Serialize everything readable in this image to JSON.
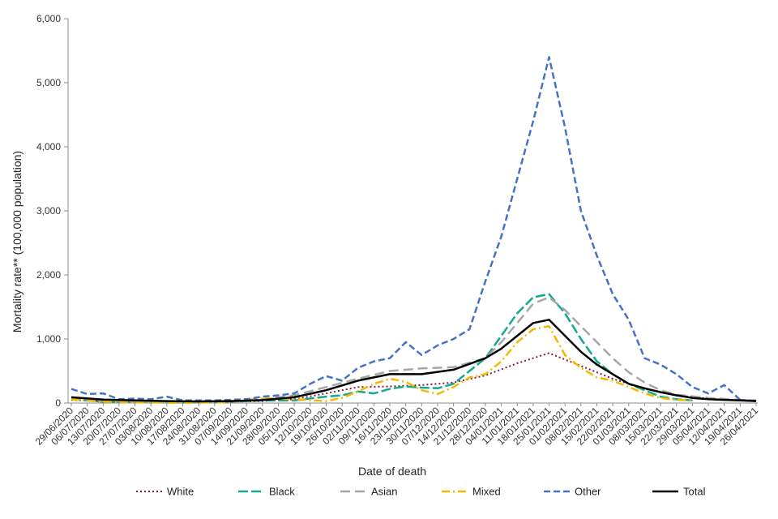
{
  "chart_data": {
    "type": "line",
    "title": "",
    "xlabel": "Date of death",
    "ylabel": "Mortality rate** (100,000 population)",
    "ylim": [
      0,
      6000
    ],
    "yticks": [
      0,
      1000,
      2000,
      3000,
      4000,
      5000,
      6000
    ],
    "ytick_labels": [
      "0",
      "1,000",
      "2,000",
      "3,000",
      "4,000",
      "5,000",
      "6,000"
    ],
    "grid": false,
    "legend_position": "bottom",
    "x_tick_labels": [
      "29/06/2020",
      "06/07/2020",
      "13/07/2020",
      "20/07/2020",
      "27/07/2020",
      "03/08/2020",
      "10/08/2020",
      "17/08/2020",
      "24/08/2020",
      "31/08/2020",
      "07/09/2020",
      "14/09/2020",
      "21/09/2020",
      "28/09/2020",
      "05/10/2020",
      "12/10/2020",
      "19/10/2020",
      "26/10/2020",
      "02/11/2020",
      "09/11/2020",
      "16/11/2020",
      "23/11/2020",
      "30/11/2020",
      "07/12/2020",
      "14/12/2020",
      "21/12/2020",
      "28/12/2020",
      "04/01/2021",
      "11/01/2021",
      "18/01/2021",
      "25/01/2021",
      "01/02/2021",
      "08/02/2021",
      "15/02/2021",
      "22/02/2021",
      "01/03/2021",
      "08/03/2021",
      "15/03/2021",
      "22/03/2021",
      "29/03/2021",
      "05/04/2021",
      "12/04/2021",
      "19/04/2021",
      "26/04/2021"
    ],
    "series": [
      {
        "name": "White",
        "color": "#8b1a3a",
        "dash": "2,3",
        "width": 2,
        "x": [
          "29/06/2020",
          "13/07/2020",
          "27/07/2020",
          "10/08/2020",
          "24/08/2020",
          "07/09/2020",
          "21/09/2020",
          "05/10/2020",
          "19/10/2020",
          "02/11/2020",
          "16/11/2020",
          "30/11/2020",
          "14/12/2020",
          "28/12/2020",
          "11/01/2021",
          "25/01/2021",
          "08/02/2021",
          "22/02/2021",
          "08/03/2021",
          "22/03/2021",
          "05/04/2021",
          "19/04/2021",
          "26/04/2021"
        ],
        "y": [
          50,
          25,
          20,
          15,
          15,
          20,
          30,
          60,
          150,
          250,
          260,
          280,
          320,
          430,
          620,
          780,
          580,
          380,
          220,
          120,
          70,
          40,
          30
        ]
      },
      {
        "name": "Black",
        "color": "#14a88f",
        "dash": "12,4",
        "width": 2.5,
        "x": [
          "29/06/2020",
          "13/07/2020",
          "27/07/2020",
          "10/08/2020",
          "24/08/2020",
          "07/09/2020",
          "21/09/2020",
          "05/10/2020",
          "19/10/2020",
          "26/10/2020",
          "02/11/2020",
          "09/11/2020",
          "16/11/2020",
          "23/11/2020",
          "30/11/2020",
          "07/12/2020",
          "14/12/2020",
          "21/12/2020",
          "28/12/2020",
          "04/01/2021",
          "11/01/2021",
          "18/01/2021",
          "25/01/2021",
          "01/02/2021",
          "08/02/2021",
          "15/02/2021",
          "22/02/2021",
          "01/03/2021",
          "08/03/2021",
          "15/03/2021",
          "22/03/2021",
          "29/03/2021"
        ],
        "y": [
          60,
          20,
          15,
          10,
          10,
          20,
          40,
          40,
          100,
          120,
          180,
          150,
          220,
          260,
          240,
          230,
          300,
          500,
          700,
          1050,
          1400,
          1650,
          1700,
          1400,
          1000,
          650,
          450,
          300,
          200,
          100,
          60,
          40
        ]
      },
      {
        "name": "Asian",
        "color": "#a6a6a6",
        "dash": "12,6",
        "width": 2.5,
        "x": [
          "29/06/2020",
          "13/07/2020",
          "27/07/2020",
          "10/08/2020",
          "24/08/2020",
          "07/09/2020",
          "21/09/2020",
          "05/10/2020",
          "19/10/2020",
          "02/11/2020",
          "16/11/2020",
          "30/11/2020",
          "14/12/2020",
          "28/12/2020",
          "04/01/2021",
          "11/01/2021",
          "18/01/2021",
          "25/01/2021",
          "01/02/2021",
          "08/02/2021",
          "15/02/2021",
          "22/02/2021",
          "01/03/2021",
          "08/03/2021",
          "15/03/2021",
          "22/03/2021",
          "05/04/2021",
          "19/04/2021",
          "26/04/2021"
        ],
        "y": [
          70,
          30,
          20,
          15,
          15,
          25,
          60,
          120,
          250,
          380,
          500,
          540,
          560,
          700,
          950,
          1250,
          1550,
          1650,
          1450,
          1200,
          950,
          700,
          480,
          320,
          200,
          130,
          80,
          50,
          40
        ]
      },
      {
        "name": "Mixed",
        "color": "#f5b800",
        "dash": "10,4,2,4",
        "width": 2.5,
        "x": [
          "29/06/2020",
          "13/07/2020",
          "27/07/2020",
          "10/08/2020",
          "24/08/2020",
          "07/09/2020",
          "21/09/2020",
          "05/10/2020",
          "19/10/2020",
          "26/10/2020",
          "02/11/2020",
          "09/11/2020",
          "16/11/2020",
          "23/11/2020",
          "30/11/2020",
          "07/12/2020",
          "14/12/2020",
          "21/12/2020",
          "28/12/2020",
          "04/01/2021",
          "11/01/2021",
          "18/01/2021",
          "25/01/2021",
          "01/02/2021",
          "08/02/2021",
          "15/02/2021",
          "22/02/2021",
          "01/03/2021",
          "08/03/2021",
          "15/03/2021",
          "22/03/2021",
          "29/03/2021"
        ],
        "y": [
          60,
          20,
          10,
          5,
          5,
          15,
          80,
          60,
          30,
          80,
          180,
          300,
          380,
          330,
          200,
          140,
          250,
          400,
          450,
          650,
          950,
          1150,
          1200,
          750,
          550,
          400,
          350,
          250,
          150,
          80,
          50,
          40
        ]
      },
      {
        "name": "Other",
        "color": "#4472c4",
        "dash": "8,4",
        "width": 2.5,
        "x": [
          "29/06/2020",
          "06/07/2020",
          "13/07/2020",
          "20/07/2020",
          "27/07/2020",
          "03/08/2020",
          "10/08/2020",
          "17/08/2020",
          "24/08/2020",
          "31/08/2020",
          "07/09/2020",
          "14/09/2020",
          "21/09/2020",
          "28/09/2020",
          "05/10/2020",
          "12/10/2020",
          "19/10/2020",
          "26/10/2020",
          "02/11/2020",
          "09/11/2020",
          "16/11/2020",
          "23/11/2020",
          "30/11/2020",
          "07/12/2020",
          "14/12/2020",
          "21/12/2020",
          "28/12/2020",
          "04/01/2021",
          "11/01/2021",
          "18/01/2021",
          "25/01/2021",
          "01/02/2021",
          "08/02/2021",
          "15/02/2021",
          "22/02/2021",
          "01/03/2021",
          "08/03/2021",
          "15/03/2021",
          "22/03/2021",
          "29/03/2021",
          "05/04/2021",
          "12/04/2021",
          "19/04/2021",
          "26/04/2021"
        ],
        "y": [
          220,
          140,
          150,
          60,
          70,
          60,
          100,
          40,
          40,
          40,
          50,
          60,
          100,
          120,
          150,
          300,
          420,
          350,
          550,
          650,
          700,
          950,
          750,
          900,
          1000,
          1150,
          1900,
          2600,
          3500,
          4400,
          5400,
          4300,
          3000,
          2300,
          1700,
          1300,
          700,
          600,
          450,
          250,
          150,
          280,
          50,
          30
        ]
      },
      {
        "name": "Total",
        "color": "#000000",
        "dash": "",
        "width": 2.5,
        "x": [
          "29/06/2020",
          "13/07/2020",
          "27/07/2020",
          "10/08/2020",
          "24/08/2020",
          "07/09/2020",
          "21/09/2020",
          "05/10/2020",
          "19/10/2020",
          "02/11/2020",
          "16/11/2020",
          "30/11/2020",
          "14/12/2020",
          "28/12/2020",
          "04/01/2021",
          "11/01/2021",
          "18/01/2021",
          "25/01/2021",
          "01/02/2021",
          "08/02/2021",
          "15/02/2021",
          "22/02/2021",
          "01/03/2021",
          "08/03/2021",
          "15/03/2021",
          "22/03/2021",
          "29/03/2021",
          "05/04/2021",
          "12/04/2021",
          "19/04/2021",
          "26/04/2021"
        ],
        "y": [
          90,
          55,
          40,
          30,
          25,
          30,
          45,
          90,
          200,
          350,
          450,
          450,
          520,
          700,
          850,
          1050,
          1250,
          1300,
          1050,
          800,
          600,
          450,
          300,
          230,
          170,
          120,
          80,
          60,
          50,
          40,
          30
        ]
      }
    ]
  }
}
